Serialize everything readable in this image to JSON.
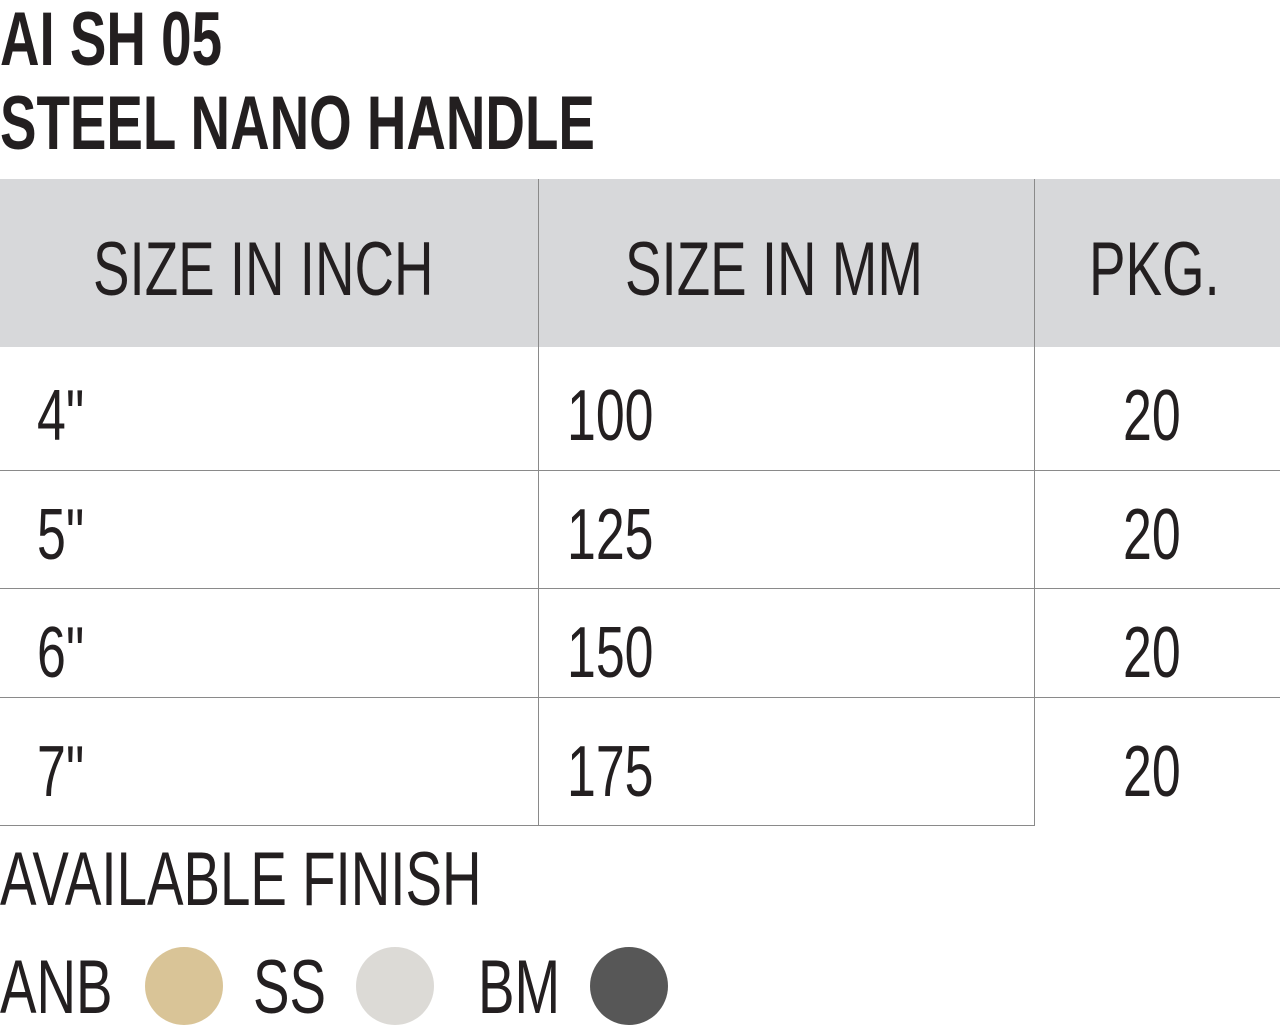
{
  "product": {
    "code": "AI  SH 05",
    "name": "STEEL NANO HANDLE"
  },
  "table": {
    "headers": [
      "SIZE IN INCH",
      "SIZE IN MM",
      "PKG."
    ],
    "rows": [
      [
        "4\"",
        "100",
        "20"
      ],
      [
        "5\"",
        "125",
        "20"
      ],
      [
        "6\"",
        "150",
        "20"
      ],
      [
        "7\"",
        "175",
        "20"
      ]
    ]
  },
  "finish": {
    "heading": "AVAILABLE FINISH",
    "options": [
      {
        "label": "ANB",
        "color": "#d9c497"
      },
      {
        "label": "SS",
        "color": "#dcdad6"
      },
      {
        "label": "BM",
        "color": "#575757"
      }
    ]
  }
}
